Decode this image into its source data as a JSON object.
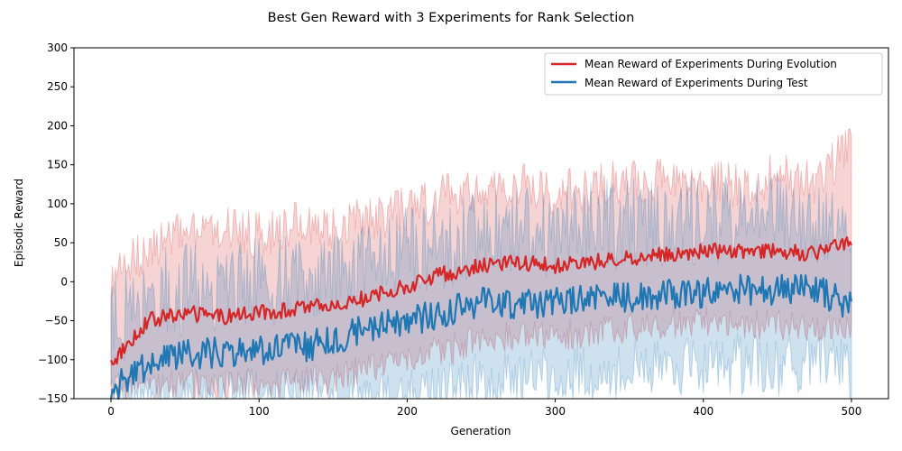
{
  "chart_data": {
    "type": "line",
    "title": "Best Gen Reward with 3 Experiments for Rank Selection",
    "xlabel": "Generation",
    "ylabel": "Episodic Reward",
    "xlim": [
      -25,
      525
    ],
    "ylim": [
      -150,
      300
    ],
    "xticks": [
      0,
      100,
      200,
      300,
      400,
      500
    ],
    "yticks": [
      -150,
      -100,
      -50,
      0,
      50,
      100,
      150,
      200,
      250,
      300
    ],
    "grid": false,
    "legend_position": "top-right",
    "colors": {
      "evolution": "#d62728",
      "test": "#1f77b4"
    },
    "series": [
      {
        "name": "Mean Reward of Experiments During Evolution",
        "color": "#d62728",
        "x": [
          0,
          25,
          50,
          75,
          100,
          125,
          150,
          175,
          200,
          225,
          250,
          275,
          300,
          325,
          350,
          375,
          400,
          425,
          450,
          475,
          500
        ],
        "mean": [
          -105,
          -50,
          -40,
          -45,
          -40,
          -35,
          -30,
          -20,
          -5,
          10,
          20,
          25,
          20,
          25,
          30,
          35,
          40,
          40,
          40,
          35,
          55
        ],
        "upper": [
          0,
          45,
          60,
          70,
          60,
          75,
          70,
          80,
          95,
          110,
          120,
          125,
          115,
          120,
          130,
          135,
          130,
          125,
          135,
          130,
          175
        ],
        "lower": [
          -150,
          -130,
          -130,
          -135,
          -130,
          -130,
          -125,
          -110,
          -100,
          -90,
          -75,
          -70,
          -70,
          -65,
          -60,
          -55,
          -50,
          -55,
          -55,
          -60,
          -65
        ]
      },
      {
        "name": "Mean Reward of Experiments During Test",
        "color": "#1f77b4",
        "x": [
          0,
          25,
          50,
          75,
          100,
          125,
          150,
          175,
          200,
          225,
          250,
          275,
          300,
          325,
          350,
          375,
          400,
          425,
          450,
          475,
          500
        ],
        "mean": [
          -140,
          -105,
          -95,
          -90,
          -90,
          -85,
          -75,
          -60,
          -50,
          -40,
          -25,
          -30,
          -25,
          -20,
          -20,
          -15,
          -15,
          -10,
          -10,
          -10,
          -30
        ],
        "upper": [
          -60,
          -20,
          -10,
          -5,
          0,
          5,
          5,
          20,
          40,
          45,
          60,
          65,
          65,
          70,
          75,
          80,
          80,
          85,
          85,
          80,
          40
        ],
        "lower": [
          -150,
          -150,
          -150,
          -150,
          -150,
          -150,
          -150,
          -150,
          -150,
          -140,
          -130,
          -125,
          -120,
          -120,
          -115,
          -110,
          -110,
          -105,
          -110,
          -105,
          -115
        ]
      }
    ]
  }
}
